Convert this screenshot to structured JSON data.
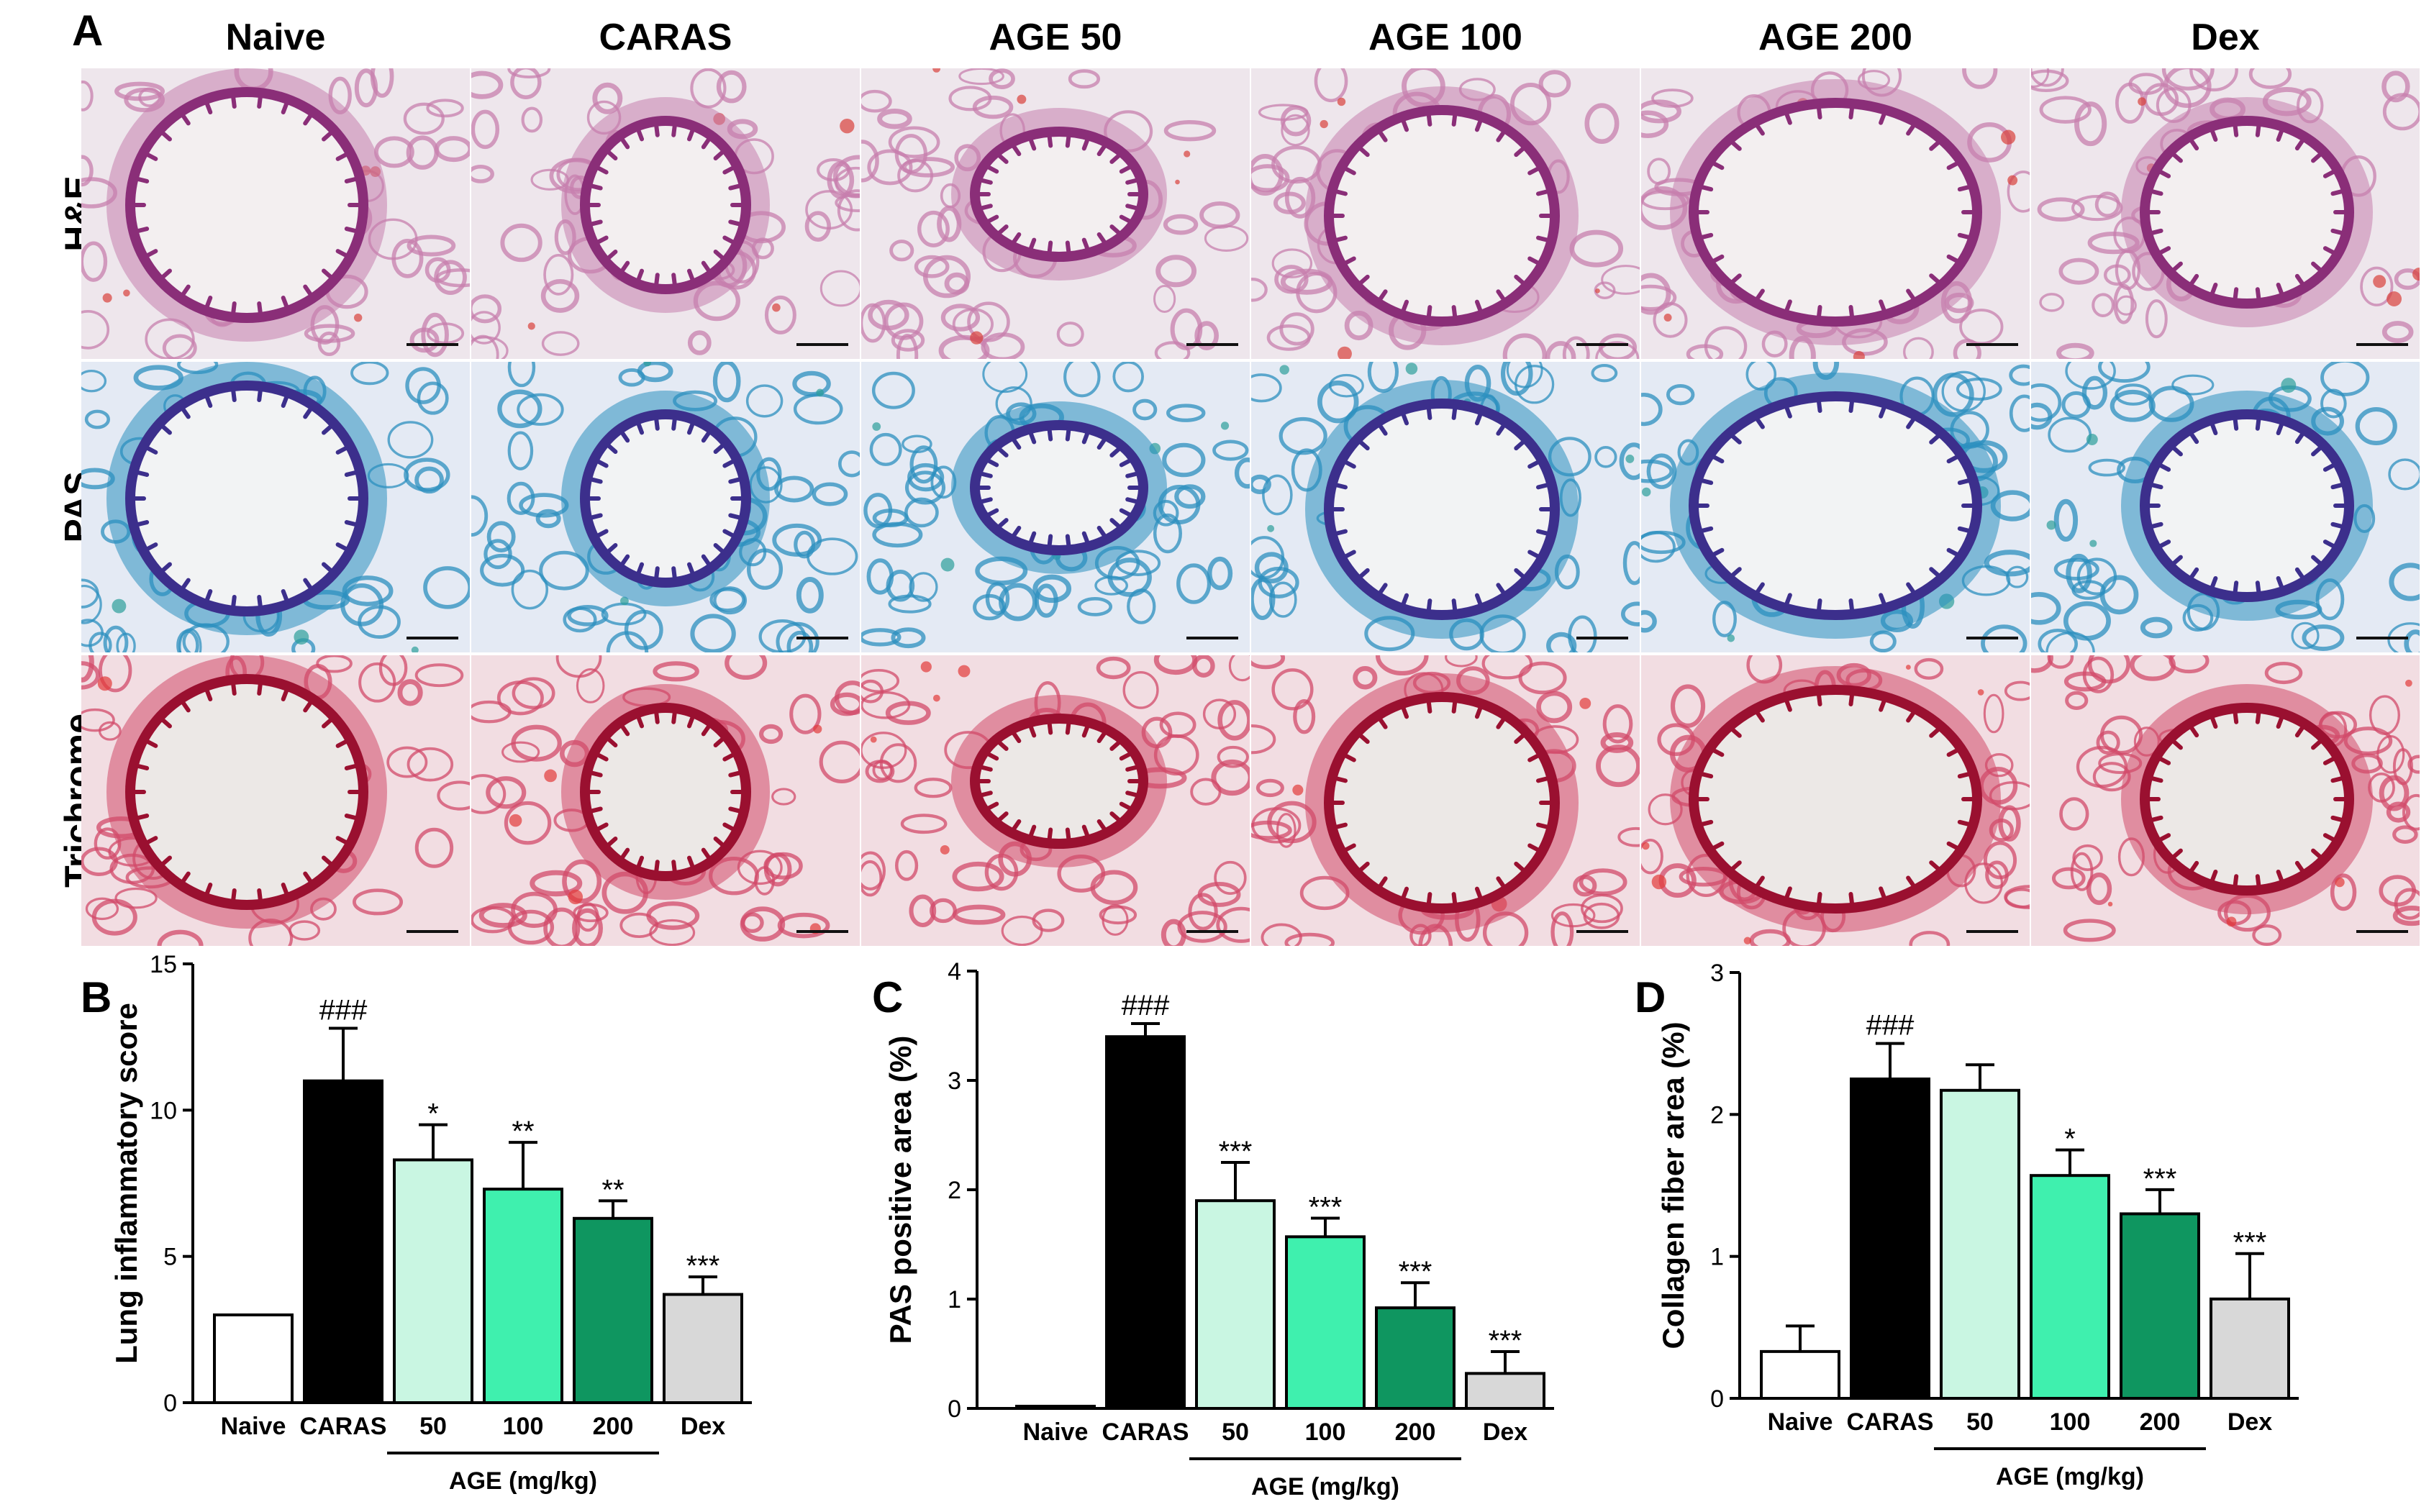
{
  "figure": {
    "panel_labels": [
      "A",
      "B",
      "C",
      "D"
    ],
    "columns": [
      "Naive",
      "CARAS",
      "AGE 50",
      "AGE 100",
      "AGE 200",
      "Dex"
    ],
    "rows": [
      {
        "label": "H&E",
        "stain": "he"
      },
      {
        "label": "PAS",
        "stain": "pas"
      },
      {
        "label": "Trichrome",
        "stain": "trichrome"
      }
    ],
    "stain_colors": {
      "he": {
        "bg": "#eee6ec",
        "tissue": "#c77fae",
        "epithelium": "#8a2e78",
        "lumen": "#f3eff0",
        "blood": "#d8403c"
      },
      "pas": {
        "bg": "#e4eaf4",
        "tissue": "#2c8fbf",
        "epithelium": "#3c2f8c",
        "lumen": "#f2f3f4",
        "blood": "#2c9e9a"
      },
      "trichrome": {
        "bg": "#f2dde2",
        "tissue": "#d14a6a",
        "epithelium": "#9a1030",
        "lumen": "#ece8e6",
        "blood": "#e23a3a"
      }
    }
  },
  "group_colors": [
    "#ffffff",
    "#000000",
    "#c9f6e2",
    "#3ff0ae",
    "#0f9660",
    "#d8d8d8"
  ],
  "chart_data": [
    {
      "panel": "B",
      "type": "bar",
      "categories": [
        "Naive",
        "CARAS",
        "50",
        "100",
        "200",
        "Dex"
      ],
      "group_label": "AGE (mg/kg)",
      "values": [
        3.0,
        11.0,
        8.3,
        7.3,
        6.3,
        3.7
      ],
      "errors": [
        0.0,
        1.8,
        1.2,
        1.6,
        0.6,
        0.6
      ],
      "annotations": [
        "",
        "###",
        "*",
        "**",
        "**",
        "***"
      ],
      "ylabel": "Lung inflammatory score",
      "xlabel": "",
      "ylim": [
        0,
        15
      ],
      "yticks": [
        0,
        5,
        10,
        15
      ]
    },
    {
      "panel": "C",
      "type": "bar",
      "categories": [
        "Naive",
        "CARAS",
        "50",
        "100",
        "200",
        "Dex"
      ],
      "group_label": "AGE (mg/kg)",
      "values": [
        0.02,
        3.4,
        1.9,
        1.57,
        0.92,
        0.32
      ],
      "errors": [
        0.0,
        0.12,
        0.35,
        0.17,
        0.23,
        0.2
      ],
      "annotations": [
        "",
        "###",
        "***",
        "***",
        "***",
        "***"
      ],
      "ylabel": "PAS positive area (%)",
      "xlabel": "",
      "ylim": [
        0,
        4
      ],
      "yticks": [
        0,
        1,
        2,
        3,
        4
      ]
    },
    {
      "panel": "D",
      "type": "bar",
      "categories": [
        "Naive",
        "CARAS",
        "50",
        "100",
        "200",
        "Dex"
      ],
      "group_label": "AGE (mg/kg)",
      "values": [
        0.33,
        2.25,
        2.17,
        1.57,
        1.3,
        0.7
      ],
      "errors": [
        0.18,
        0.25,
        0.18,
        0.18,
        0.17,
        0.32
      ],
      "annotations": [
        "",
        "###",
        "",
        "*",
        "***",
        "***"
      ],
      "ylabel": "Collagen fiber area (%)",
      "xlabel": "",
      "ylim": [
        0,
        3
      ],
      "yticks": [
        0,
        1,
        2,
        3
      ]
    }
  ]
}
